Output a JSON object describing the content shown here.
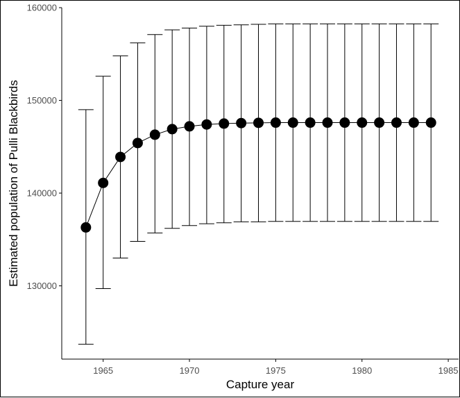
{
  "chart_data": {
    "type": "line",
    "title": "",
    "xlabel": "Capture year",
    "ylabel": "Estimated population of Pulli Blackbirds",
    "xlim": [
      1962.6,
      1985.6
    ],
    "ylim": [
      122100,
      160000
    ],
    "x_ticks": [
      1965,
      1970,
      1975,
      1980,
      1985
    ],
    "x_tick_labels": [
      "1965",
      "1970",
      "1975",
      "1980",
      "1985"
    ],
    "y_ticks": [
      130000,
      140000,
      150000,
      160000
    ],
    "y_tick_labels": [
      "130000",
      "140000",
      "150000",
      "160000"
    ],
    "grid": false,
    "series": [
      {
        "x": [
          1964,
          1965,
          1966,
          1967,
          1968,
          1969,
          1970,
          1971,
          1972,
          1973,
          1974,
          1975,
          1976,
          1977,
          1978,
          1979,
          1980,
          1981,
          1982,
          1983,
          1984
        ],
        "y": [
          136300,
          141100,
          143900,
          145400,
          146300,
          146900,
          147200,
          147400,
          147500,
          147550,
          147580,
          147600,
          147600,
          147600,
          147600,
          147600,
          147600,
          147600,
          147600,
          147600,
          147600
        ],
        "lower": [
          123700,
          129700,
          133000,
          134800,
          135700,
          136200,
          136500,
          136700,
          136800,
          136900,
          136900,
          136950,
          136950,
          136950,
          136950,
          136950,
          136950,
          136950,
          136950,
          136950,
          136950
        ],
        "upper": [
          149000,
          152600,
          154800,
          156200,
          157100,
          157600,
          157800,
          158000,
          158100,
          158150,
          158200,
          158250,
          158250,
          158250,
          158250,
          158250,
          158250,
          158250,
          158250,
          158250,
          158250
        ]
      }
    ],
    "colors": {
      "line": "#000000",
      "points": "#000000",
      "errorbars": "#000000",
      "tick_labels": "#4d4d4d"
    }
  }
}
